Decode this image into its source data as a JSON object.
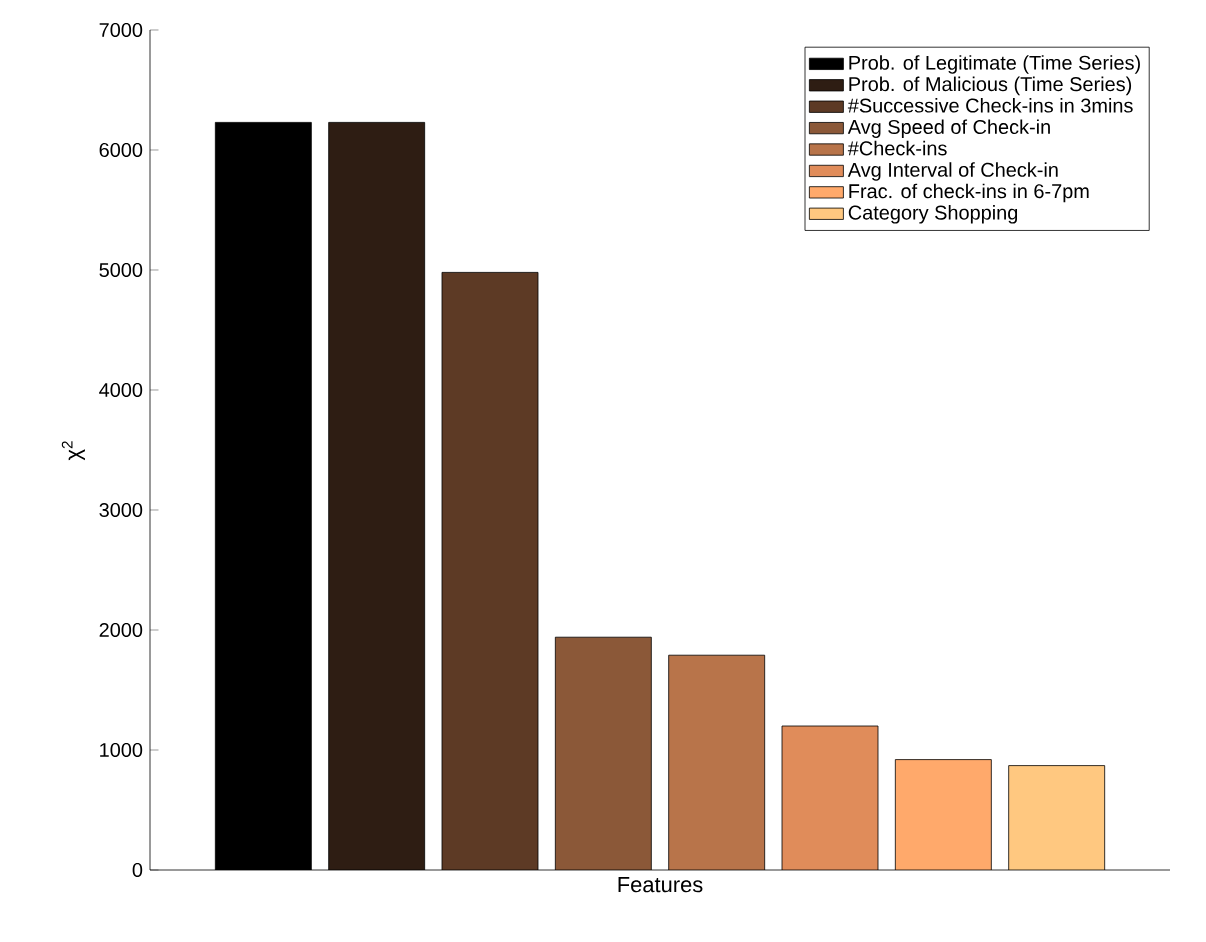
{
  "chart_data": {
    "type": "bar",
    "xlabel": "Features",
    "ylabel": "χ$^{2}$",
    "categories": [
      null,
      null,
      null,
      null,
      null,
      null,
      null,
      null
    ],
    "series": [
      {
        "name": "Prob. of Legitimate (Time Series)",
        "color": "#000000",
        "values": [
          6230,
          null,
          null,
          null,
          null,
          null,
          null,
          null
        ]
      },
      {
        "name": "Prob. of Malicious (Time Series)",
        "color": "#2e1d13",
        "values": [
          null,
          6230,
          null,
          null,
          null,
          null,
          null,
          null
        ]
      },
      {
        "name": "#Successive Check-ins in 3mins",
        "color": "#5d3a25",
        "values": [
          null,
          null,
          4980,
          null,
          null,
          null,
          null,
          null
        ]
      },
      {
        "name": "Avg Speed of Check-in",
        "color": "#8b5838",
        "values": [
          null,
          null,
          null,
          1940,
          null,
          null,
          null,
          null
        ]
      },
      {
        "name": "#Check-ins",
        "color": "#b8744a",
        "values": [
          null,
          null,
          null,
          null,
          1790,
          null,
          null,
          null
        ]
      },
      {
        "name": "Avg Interval of Check-in",
        "color": "#e08c5a",
        "values": [
          null,
          null,
          null,
          null,
          null,
          1200,
          null,
          null
        ]
      },
      {
        "name": "Frac. of check-ins in 6-7pm",
        "color": "#ffa96b",
        "values": [
          null,
          null,
          null,
          null,
          null,
          null,
          920,
          null
        ]
      },
      {
        "name": "Category Shopping",
        "color": "#ffc880",
        "values": [
          null,
          null,
          null,
          null,
          null,
          null,
          null,
          870
        ]
      }
    ],
    "ylim": [
      0,
      7000
    ],
    "yticks": [
      0,
      1000,
      2000,
      3000,
      4000,
      5000,
      6000,
      7000
    ],
    "legend": "top right",
    "tick_labels": "y"
  }
}
